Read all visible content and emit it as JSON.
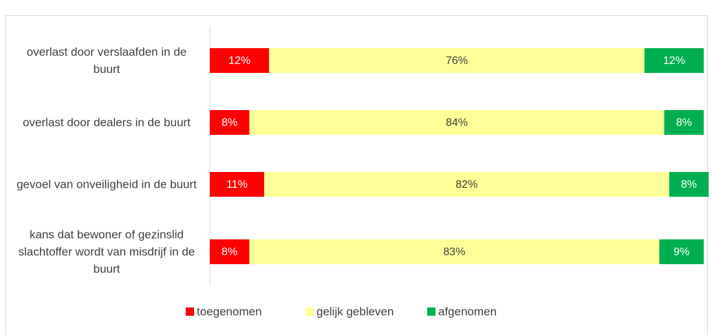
{
  "chart_data": {
    "type": "bar",
    "stacked": true,
    "orientation": "horizontal",
    "categories": [
      "overlast door verslaafden in de buurt",
      "overlast door dealers in de buurt",
      "gevoel van onveiligheid in de buurt",
      "kans dat bewoner of gezinslid slachtoffer wordt van misdrijf in de buurt"
    ],
    "series": [
      {
        "name": "toegenomen",
        "color": "#ff0000",
        "values": [
          12,
          8,
          11,
          8
        ],
        "value_labels": [
          "12%",
          "8%",
          "11%",
          "8%"
        ]
      },
      {
        "name": "gelijk gebleven",
        "color": "#ffff99",
        "values": [
          76,
          84,
          82,
          83
        ],
        "value_labels": [
          "76%",
          "84%",
          "82%",
          "83%"
        ]
      },
      {
        "name": "afgenomen",
        "color": "#00b050",
        "values": [
          12,
          8,
          8,
          9
        ],
        "value_labels": [
          "12%",
          "8%",
          "8%",
          "9%"
        ]
      }
    ],
    "xlim": [
      0,
      100
    ],
    "legend": "bottom"
  }
}
